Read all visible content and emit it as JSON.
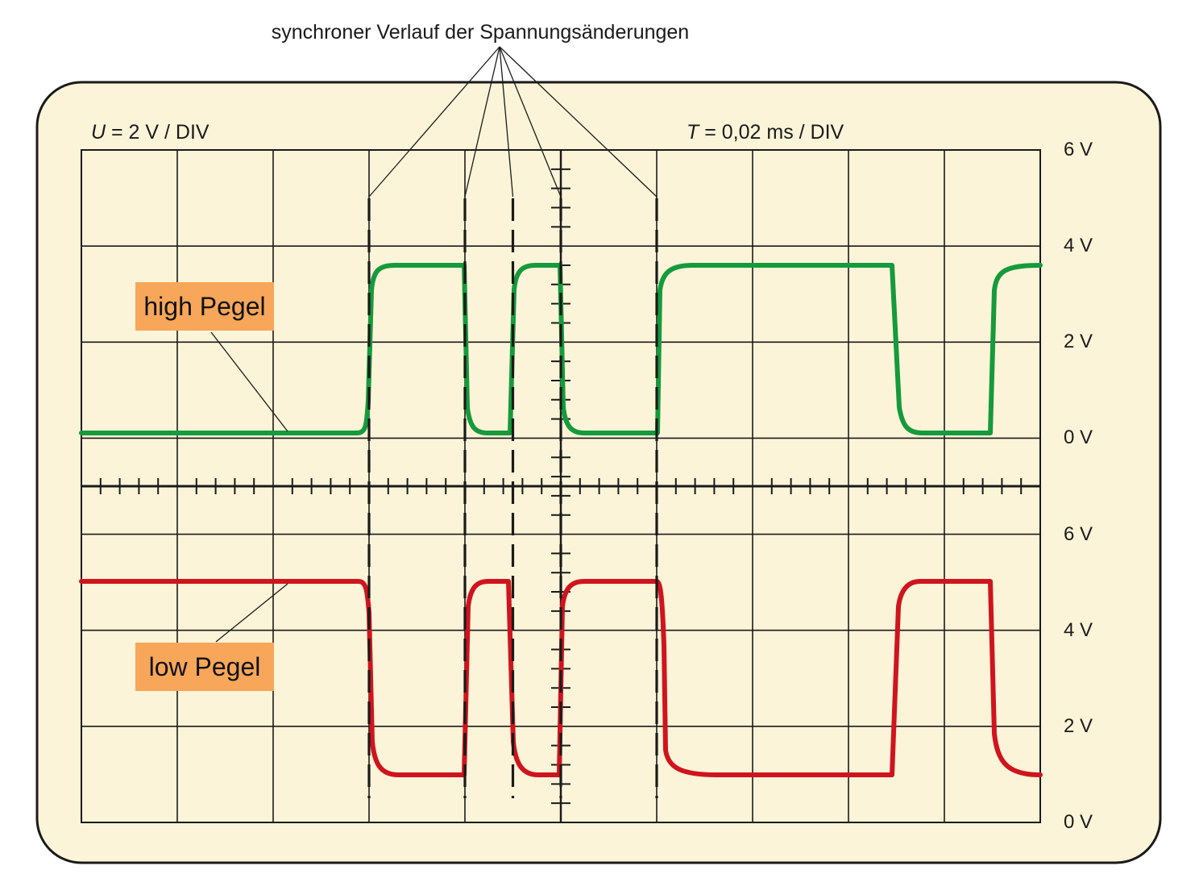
{
  "annotation_top": "synchroner Verlauf der Spannungsänderungen",
  "voltage_scale": {
    "symbol": "U",
    "text": " = 2 V / DIV"
  },
  "time_scale": {
    "symbol": "T",
    "text": " = 0,02 ms / DIV"
  },
  "upper_axis_labels": [
    "6 V",
    "4 V",
    "2 V",
    "0 V"
  ],
  "lower_axis_labels": [
    "6 V",
    "4 V",
    "2 V",
    "0 V"
  ],
  "callouts": {
    "high": "high Pegel",
    "low": "low Pegel"
  },
  "colors": {
    "screen_bg": "#fcf4d8",
    "high_trace": "#159a3c",
    "low_trace": "#d0141e",
    "callout_bg": "#f7a65a",
    "grid": "#1a1a1a"
  }
}
